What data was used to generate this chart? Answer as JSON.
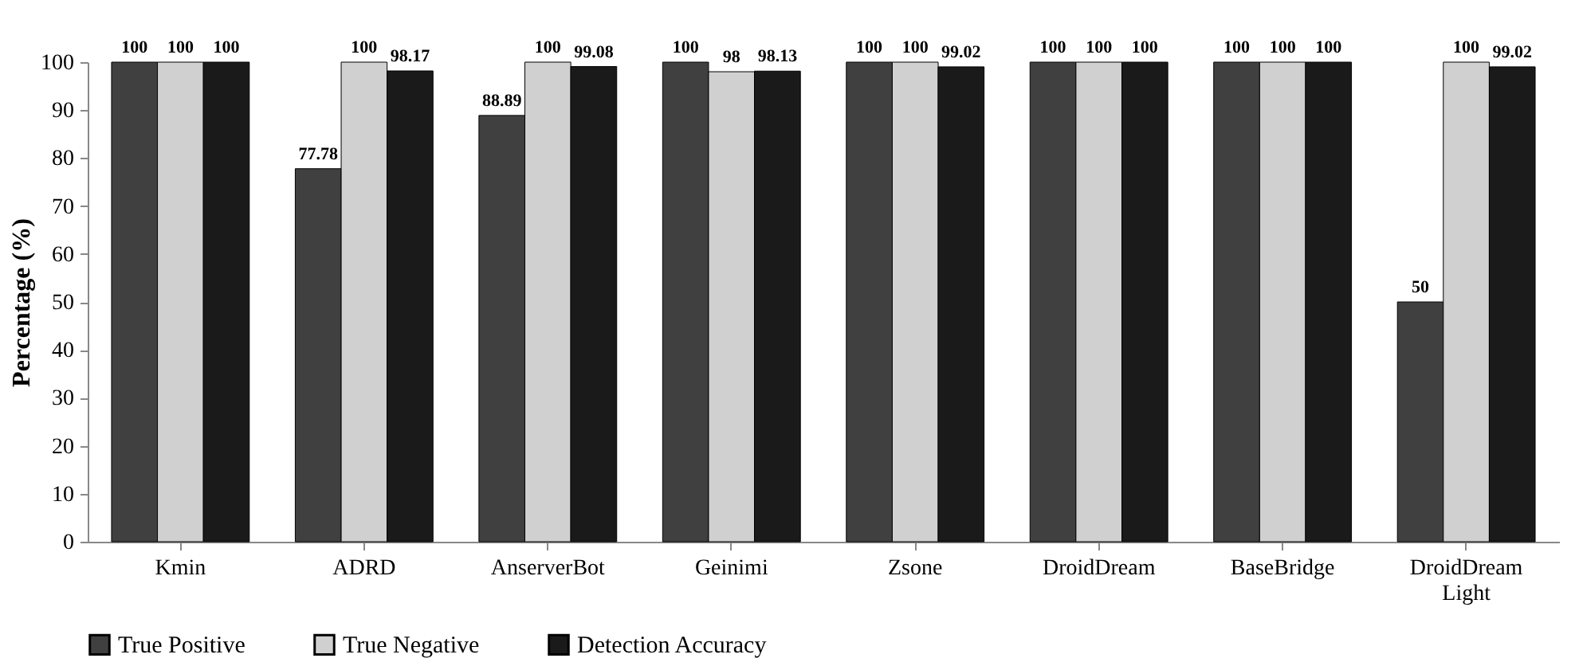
{
  "chart_data": {
    "type": "bar",
    "ylabel": "Percentage (%)",
    "categories": [
      "Kmin",
      "ADRD",
      "AnserverBot",
      "Geinimi",
      "Zsone",
      "DroidDream",
      "BaseBridge",
      "DroidDream Light"
    ],
    "series": [
      {
        "name": "True Positive",
        "color": "#404040",
        "values": [
          100,
          77.78,
          88.89,
          100,
          100,
          100,
          100,
          50
        ]
      },
      {
        "name": "True Negative",
        "color": "#d0d0d0",
        "values": [
          100,
          100,
          100,
          98,
          100,
          100,
          100,
          100
        ]
      },
      {
        "name": "Detection Accuracy",
        "color": "#1a1a1a",
        "values": [
          100,
          98.17,
          99.08,
          98.13,
          99.02,
          100,
          100,
          99.02
        ]
      }
    ],
    "ylim": [
      0,
      100
    ],
    "yticks": [
      0,
      10,
      20,
      30,
      40,
      50,
      60,
      70,
      80,
      90,
      100
    ],
    "grid": false,
    "legend": "bottom",
    "data_labels": true
  }
}
